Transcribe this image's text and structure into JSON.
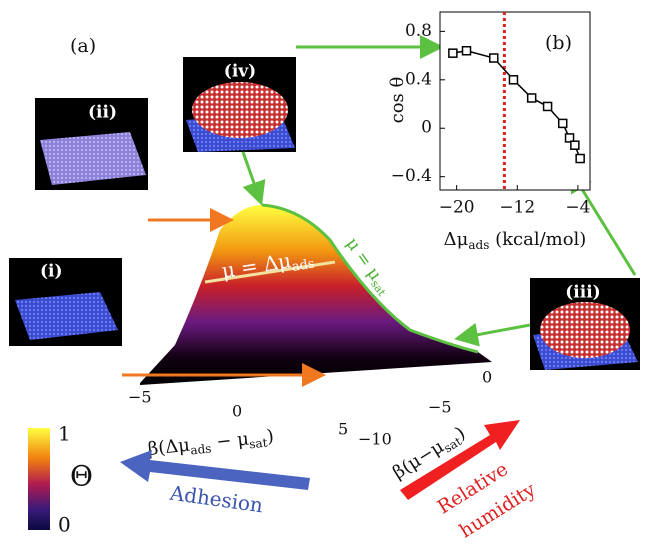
{
  "panel_labels": {
    "a": "(a)",
    "b": "(b)"
  },
  "snapshots": [
    {
      "label": "(i)"
    },
    {
      "label": "(ii)"
    },
    {
      "label": "(iii)"
    },
    {
      "label": "(iv)"
    }
  ],
  "surface": {
    "ads_line": {
      "main": "μ = Δμ",
      "sub": "ads"
    },
    "sat_line": {
      "main": "μ = μ",
      "sub": "sat"
    },
    "x_label": {
      "main": "β(Δμ",
      "sub1": "ads",
      "mid": " − μ",
      "sub2": "sat",
      "end": ")"
    },
    "x_ticks": [
      "−5",
      "0",
      "5"
    ],
    "y_label": {
      "main": "β(μ−μ",
      "sub": "sat",
      "end": ")"
    },
    "y_ticks": [
      "0",
      "−5",
      "−10"
    ]
  },
  "colorbar": {
    "max": "1",
    "min": "0",
    "symbol": "Θ"
  },
  "arrows": {
    "adhesion": "Adhesion",
    "humidity": [
      "Relative",
      "humidity"
    ]
  },
  "chart_data": {
    "type": "line",
    "x_label": {
      "main": "Δμ",
      "sub": "ads",
      "unit": " (kcal/mol)"
    },
    "y_label": "cos θ",
    "x": [
      -20.5,
      -18.7,
      -15.1,
      -12.5,
      -10.1,
      -8.0,
      -6.0,
      -5.1,
      -4.4,
      -3.7
    ],
    "series": [
      {
        "color": "#000000",
        "values": [
          0.62,
          0.64,
          0.58,
          0.4,
          0.25,
          0.18,
          0.04,
          -0.08,
          -0.14,
          -0.25
        ]
      }
    ],
    "xlim": [
      -22.2,
      -2.4
    ],
    "ylim": [
      -0.51,
      0.96
    ],
    "xticks": [
      {
        "value": -20,
        "label": "−20"
      },
      {
        "value": -12,
        "label": "−12"
      },
      {
        "value": -4,
        "label": "−4"
      }
    ],
    "yticks": [
      0.8,
      0.4,
      0,
      {
        "value": -0.4,
        "label": "−0.4"
      }
    ],
    "vline": {
      "x": -13.7,
      "color": "#e02020"
    }
  }
}
